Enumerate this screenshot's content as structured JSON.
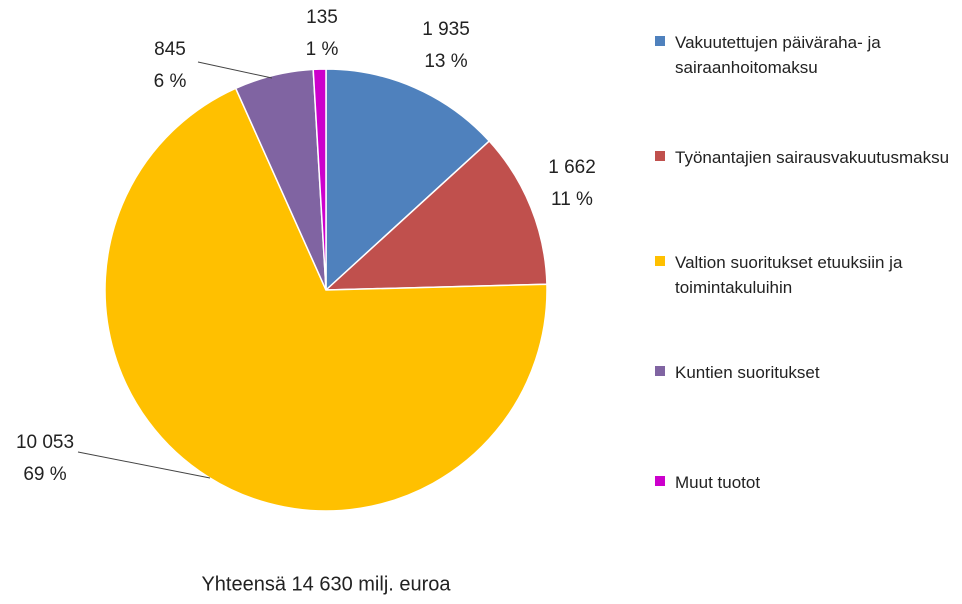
{
  "chart_data": {
    "type": "pie",
    "title": "Yhteensä 14 630 milj. euroa",
    "categories": [
      "Vakuutettujen päiväraha- ja sairaanhoitomaksu",
      "Työnantajien sairausvakuutusmaksu",
      "Valtion suoritukset etuuksiin ja toimintakuluihin",
      "Kuntien suoritukset",
      "Muut tuotot"
    ],
    "values": [
      1935,
      1662,
      10053,
      845,
      135
    ],
    "value_labels": [
      "1 935",
      "1 662",
      "10 053",
      "845",
      "135"
    ],
    "percent_labels": [
      "13 %",
      "11 %",
      "69 %",
      "6 %",
      "1 %"
    ],
    "colors": [
      "#4f81bd",
      "#c0504d",
      "#ffc000",
      "#8064a2",
      "#cc00cc"
    ],
    "legend": "right"
  }
}
